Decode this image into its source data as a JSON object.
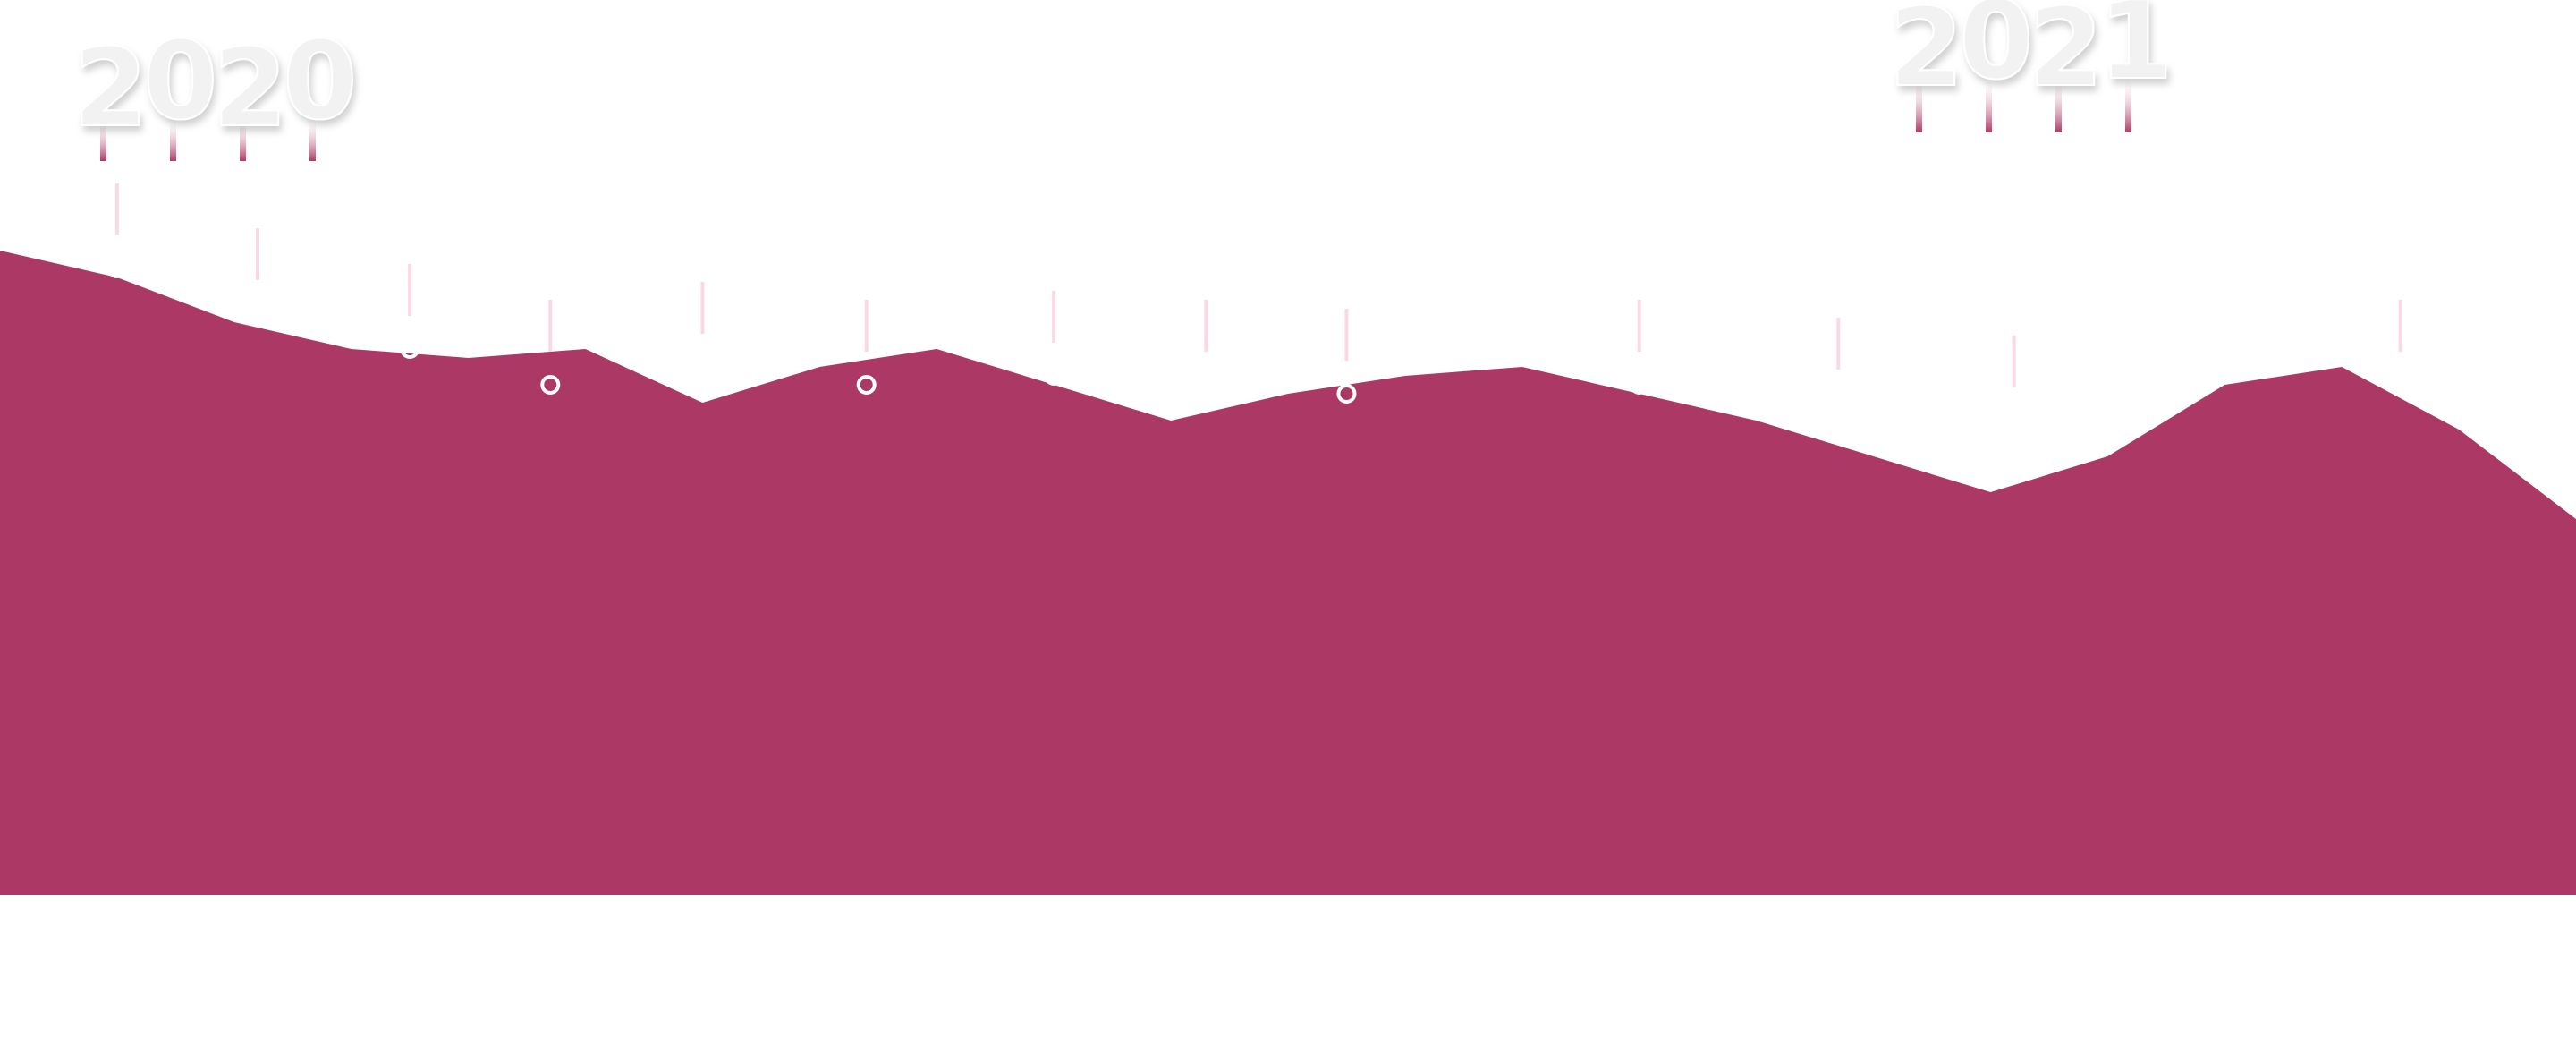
{
  "chart_data": {
    "type": "area",
    "title": "",
    "xlabel": "",
    "ylabel": "",
    "series": [
      {
        "color": "#ac3965",
        "x": [
          0,
          1,
          2,
          3,
          4,
          5,
          6,
          7,
          8,
          9,
          10,
          11,
          12,
          13,
          14,
          15,
          16,
          17,
          18,
          19,
          20,
          21,
          22
        ],
        "values": [
          72,
          69,
          64,
          61,
          60,
          61,
          55,
          59,
          61,
          57,
          53,
          56,
          58,
          59,
          56,
          53,
          49,
          45,
          49,
          57,
          59,
          52,
          42
        ],
        "markers": [
          {
            "x": 1,
            "value": 70
          },
          {
            "x": 2.2,
            "value": 65
          },
          {
            "x": 3.5,
            "value": 61
          },
          {
            "x": 4.7,
            "value": 57
          },
          {
            "x": 6,
            "value": 59
          },
          {
            "x": 7.4,
            "value": 57
          },
          {
            "x": 9,
            "value": 58
          },
          {
            "x": 10.3,
            "value": 57
          },
          {
            "x": 11.5,
            "value": 56
          },
          {
            "x": 14,
            "value": 57
          },
          {
            "x": 15.7,
            "value": 55
          },
          {
            "x": 17.2,
            "value": 53
          },
          {
            "x": 20.5,
            "value": 57
          }
        ]
      }
    ],
    "ylim": [
      0,
      100
    ],
    "year_labels": [
      "2020",
      "2021"
    ],
    "grid": false,
    "legend": "none"
  },
  "colors": {
    "area": "#ac3965",
    "marker_stem": "#fbd9e3",
    "year_text": "#f2f2f2",
    "pin": "#b0436c"
  }
}
